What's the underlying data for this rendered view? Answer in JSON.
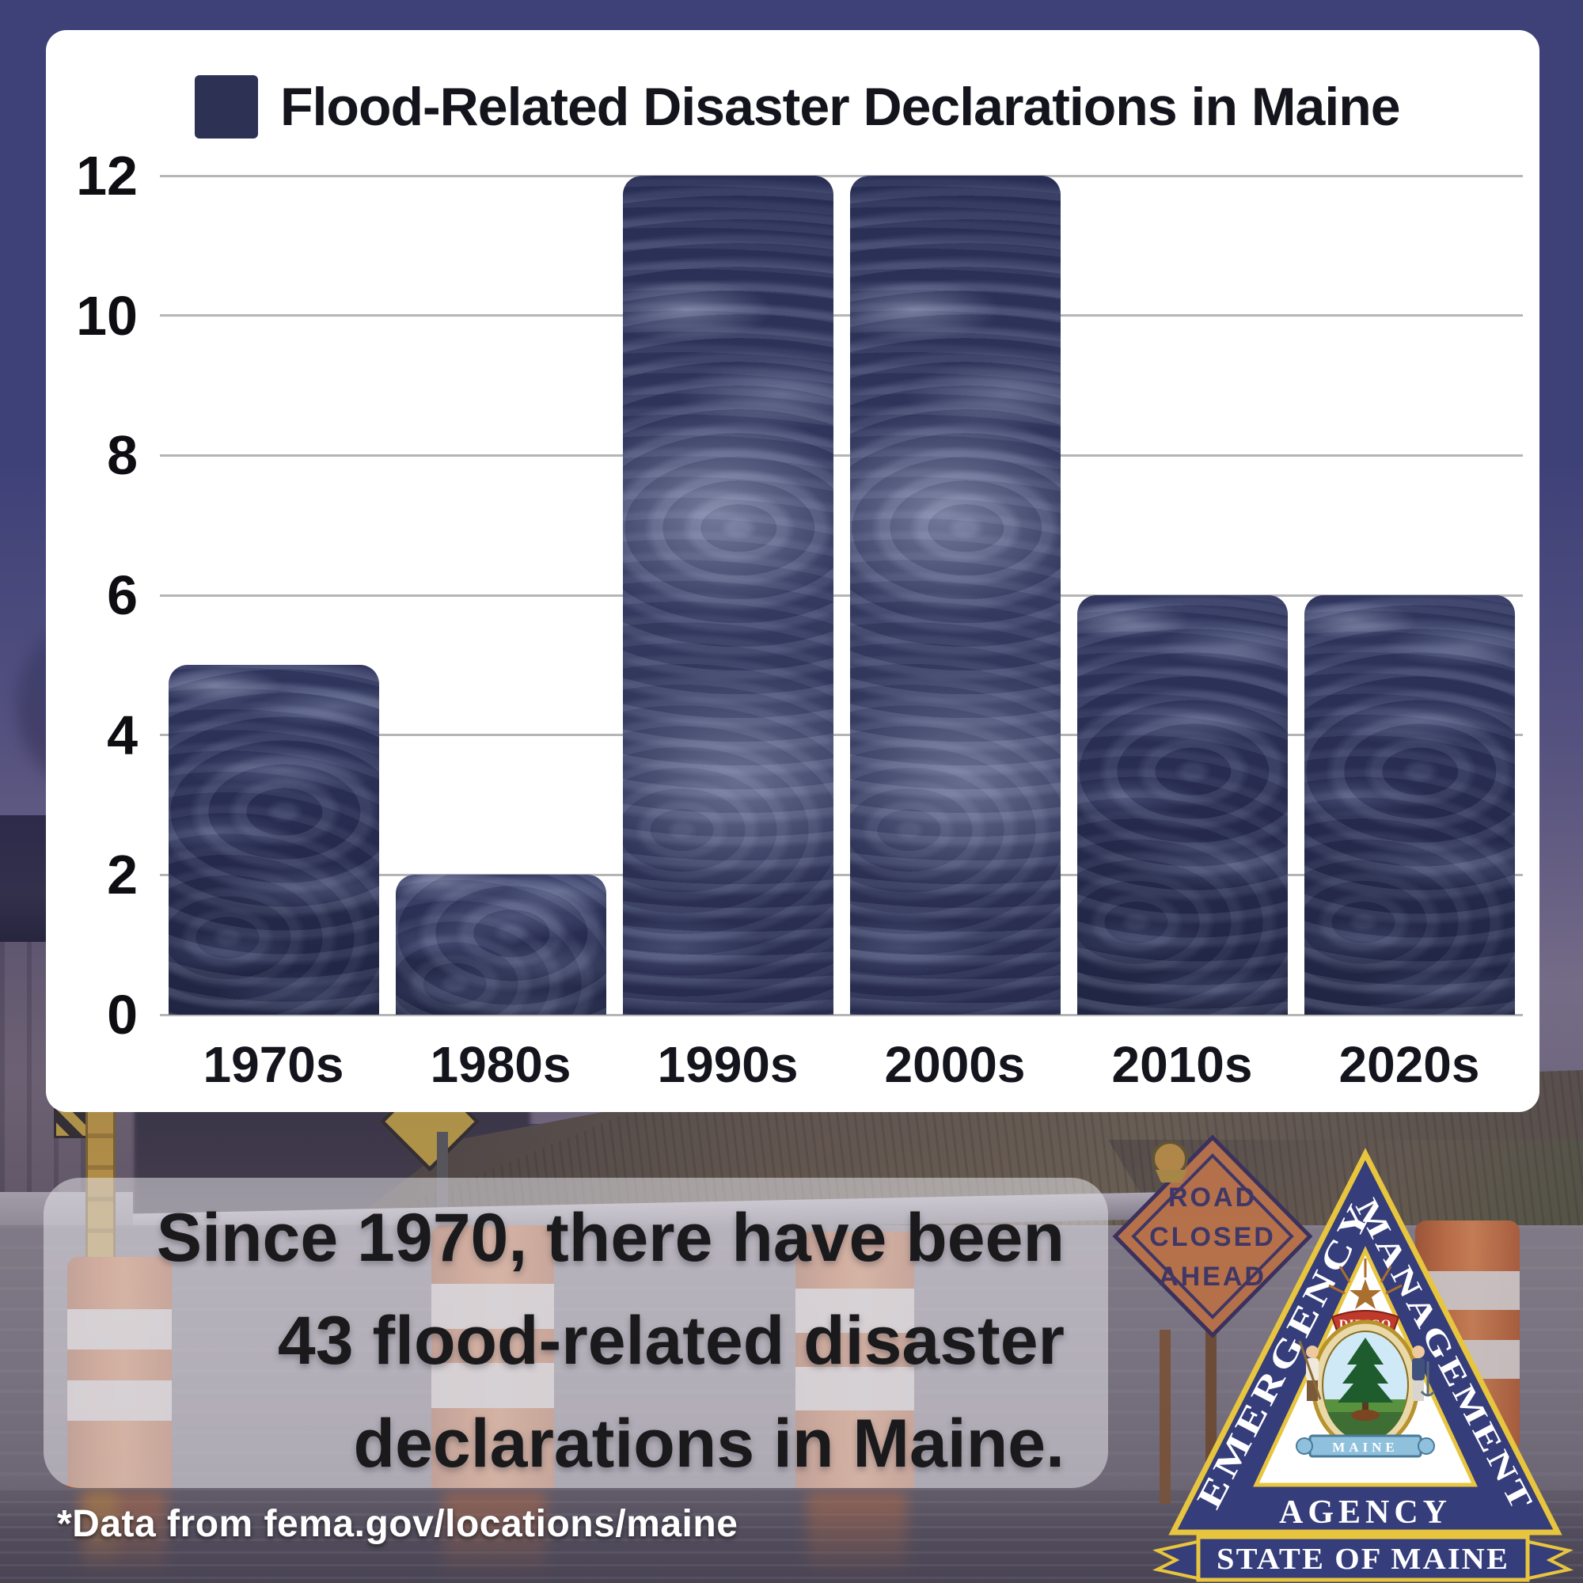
{
  "chart_data": {
    "type": "bar",
    "title": "Flood-Related Disaster Declarations in Maine",
    "legend_label": "Flood-Related Disaster Declarations in Maine",
    "legend_position": "top-left",
    "categories": [
      "1970s",
      "1980s",
      "1990s",
      "2000s",
      "2010s",
      "2020s"
    ],
    "values": [
      5,
      2,
      12,
      12,
      6,
      6
    ],
    "total": 43,
    "xlabel": "",
    "ylabel": "",
    "ylim": [
      0,
      12
    ],
    "yticks": [
      0,
      2,
      4,
      6,
      8,
      10,
      12
    ],
    "grid": true,
    "bar_color": "#2d3154",
    "plot_background": "#ffffff"
  },
  "caption": {
    "lines": [
      "Since 1970, there have been",
      "43 flood-related disaster",
      "declarations in Maine."
    ]
  },
  "footnote": "*Data from fema.gov/locations/maine",
  "photo": {
    "road_sign_lines": [
      "ROAD",
      "CLOSED",
      "AHEAD"
    ]
  },
  "logo": {
    "side_left": "EMERGENCY",
    "side_right": "MANAGEMENT",
    "bottom": "AGENCY",
    "ribbon": "STATE OF MAINE",
    "seal_motto": "DIRIGO",
    "seal_banner": "MAINE"
  },
  "colors": {
    "frame_purple": "#3e4178",
    "bar_navy": "#2d3154",
    "gridline_gray": "#b5b5b5",
    "caption_band": "rgba(228,226,232,0.55)",
    "sign_orange": "#dd8140",
    "logo_navy": "#353d7a",
    "logo_gold": "#e8c53e"
  }
}
